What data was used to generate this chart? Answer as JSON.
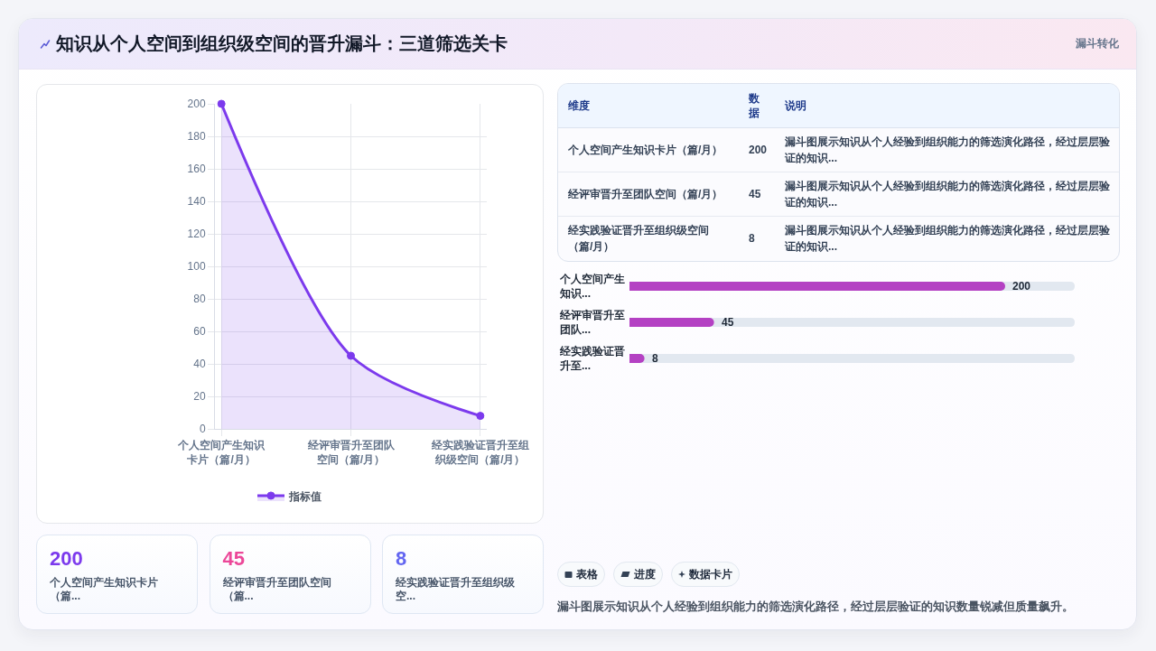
{
  "chart_data": [
    {
      "type": "other",
      "title": "知识从个人空间到组织级空间的晋升漏斗：三道筛选关卡",
      "annotations": [
        "漏斗转化"
      ]
    },
    {
      "type": "area",
      "categories": [
        "个人空间产生知识卡片（篇/月）",
        "经评审晋升至团队空间（篇/月）",
        "经实践验证晋升至组织级空间（篇/月）"
      ],
      "series": [
        {
          "name": "指标值",
          "color": "#7c3aed",
          "values": [
            200,
            45,
            8
          ]
        }
      ],
      "ylim": [
        0,
        200
      ],
      "yticks": [
        0,
        20,
        40,
        60,
        80,
        100,
        120,
        140,
        160,
        180,
        200
      ],
      "grid": true,
      "legend": "bottom",
      "marker": "circle"
    },
    {
      "type": "other",
      "categories": [
        "个人空间产生知识卡片（篇/月）",
        "经评审晋升至团队空间（篇/月）",
        "经实践验证晋升至组织级空间（篇/月）"
      ],
      "values": [
        200,
        45,
        8
      ],
      "data_labels": true,
      "annotations": [
        "维度",
        "数据",
        "说明",
        "漏斗图展示知识从个人经验到组织能力的筛选演化路径，经过层层验证的知识...",
        "漏斗图展示知识从个人经验到组织能力的筛选演化路径，经过层层验证的知识...",
        "漏斗图展示知识从个人经验到组织能力的筛选演化路径，经过层层验证的知识..."
      ]
    },
    {
      "type": "bar",
      "orientation": "horizontal",
      "categories": [
        "个人空间产生知识...",
        "经评审晋升至团队...",
        "经实践验证晋升至..."
      ],
      "values": [
        200,
        45,
        8
      ],
      "color": "#b441c3",
      "data_labels": true,
      "tick_labels": "y"
    },
    {
      "type": "other",
      "categories": [
        "个人空间产生知识卡片（篇...",
        "经评审晋升至团队空间（篇...",
        "经实践验证晋升至组织级空..."
      ],
      "values": [
        200,
        45,
        8
      ],
      "data_labels": true
    },
    {
      "type": "other",
      "annotations": [
        "表格",
        "进度",
        "数据卡片",
        "漏斗图展示知识从个人经验到组织能力的筛选演化路径，经过层层验证的知识数量锐减但质量飙升。"
      ]
    }
  ]
}
